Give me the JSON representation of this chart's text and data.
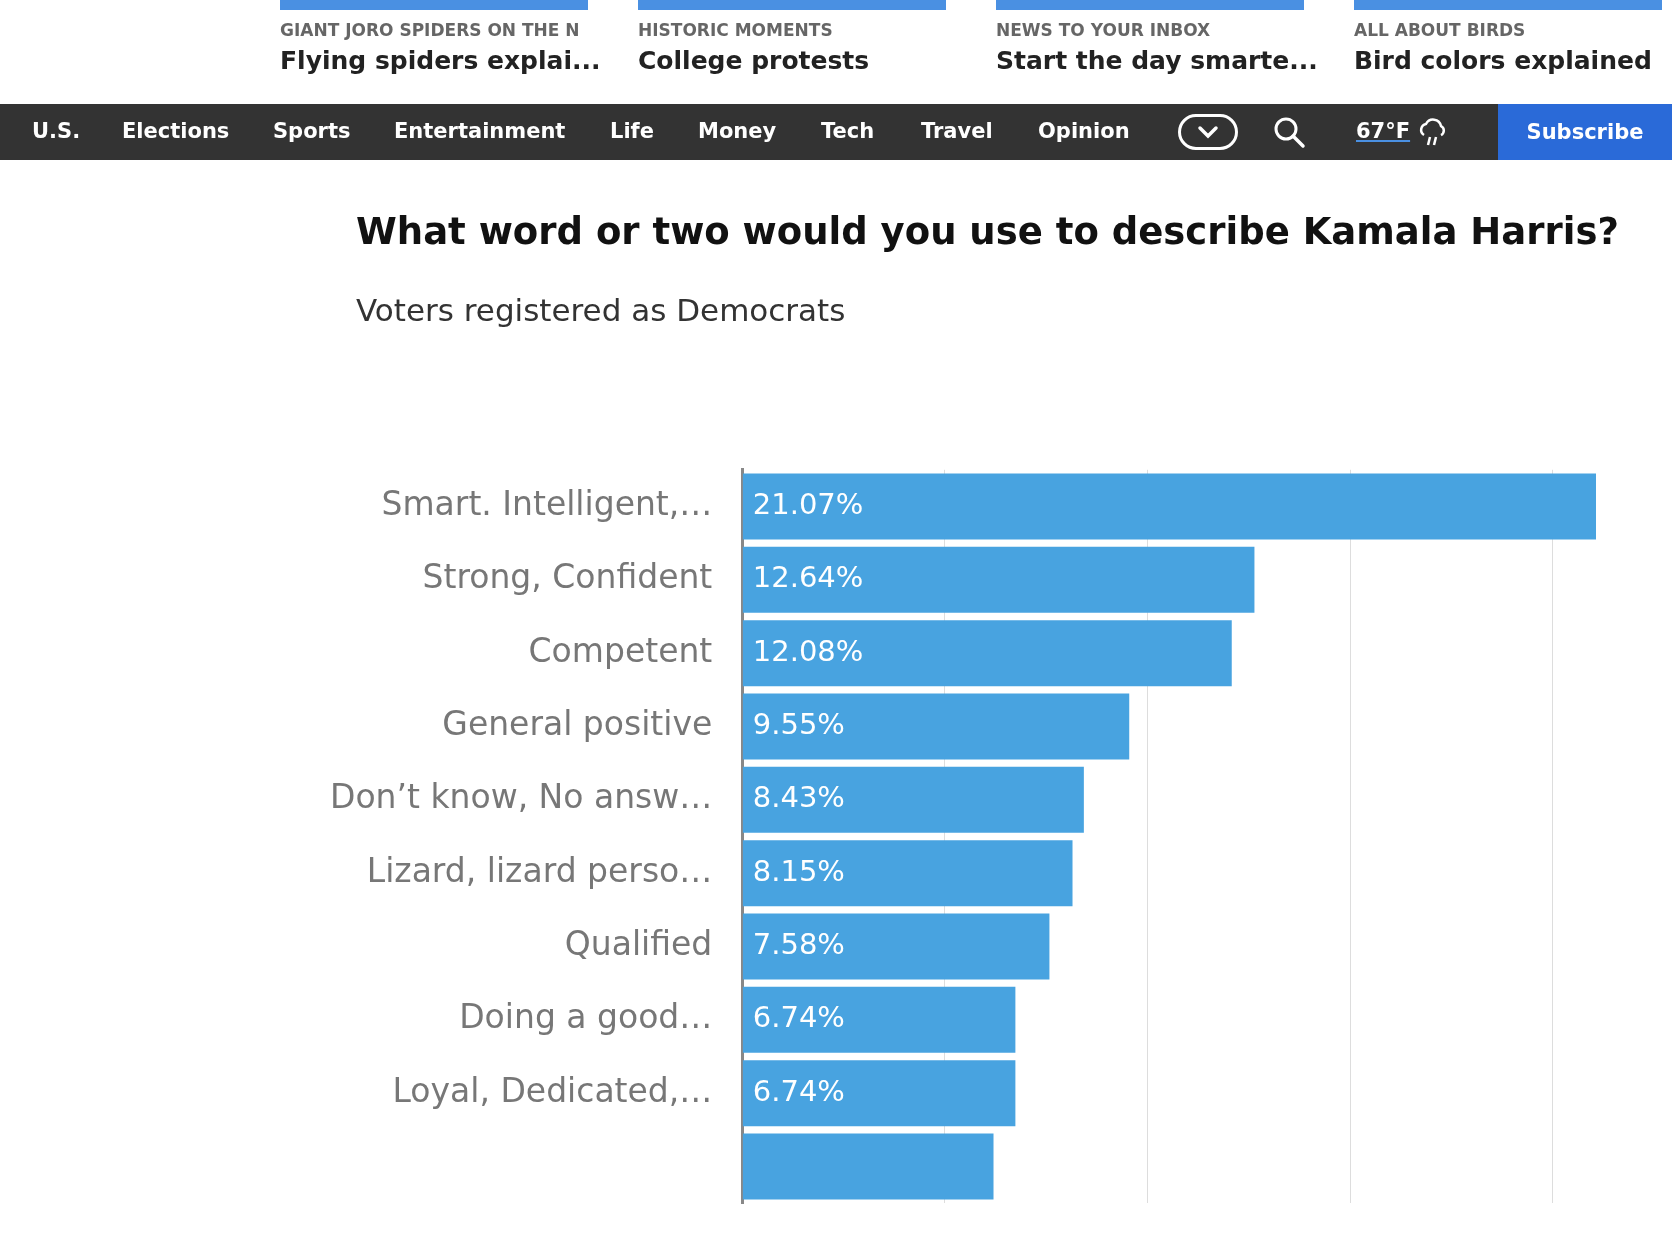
{
  "chart_data": {
    "type": "bar",
    "orientation": "horizontal",
    "title": "What word or two would you use to describe Kamala Harris?",
    "subtitle": "Voters registered as Democrats",
    "categories": [
      "Smart. Intelligent,…",
      "Strong, Confident",
      "Competent",
      "General positive",
      "Don’t know, No answ…",
      "Lizard, lizard perso…",
      "Qualified",
      "Doing a good…",
      "Loyal, Dedicated,…",
      null
    ],
    "values": [
      21.07,
      12.64,
      12.08,
      9.55,
      8.43,
      8.15,
      7.58,
      6.74,
      6.74,
      6.2
    ],
    "value_labels": [
      "21.07%",
      "12.64%",
      "12.08%",
      "9.55%",
      "8.43%",
      "8.15%",
      "7.58%",
      "6.74%",
      "6.74%",
      null
    ],
    "color": "#48a3e0",
    "xticks": [
      {
        "value": 0,
        "label": null
      },
      {
        "value": 5,
        "label": null
      },
      {
        "value": 10,
        "label": null
      },
      {
        "value": 15,
        "label": null
      },
      {
        "value": 20,
        "label": null
      }
    ],
    "tick_labels": "y",
    "grid": "x",
    "annotations": [
      "GIANT JORO SPIDERS ON THE N",
      "Flying spiders explai...",
      "HISTORIC MOMENTS",
      "College protests",
      "NEWS TO YOUR INBOX",
      "Start the day smarte...",
      "ALL ABOUT BIRDS",
      "Bird colors explained",
      "U.S.",
      "Elections",
      "Sports",
      "Entertainment",
      "Life",
      "Money",
      "Tech",
      "Travel",
      "Opinion",
      "67°F",
      "Subscribe"
    ]
  }
}
